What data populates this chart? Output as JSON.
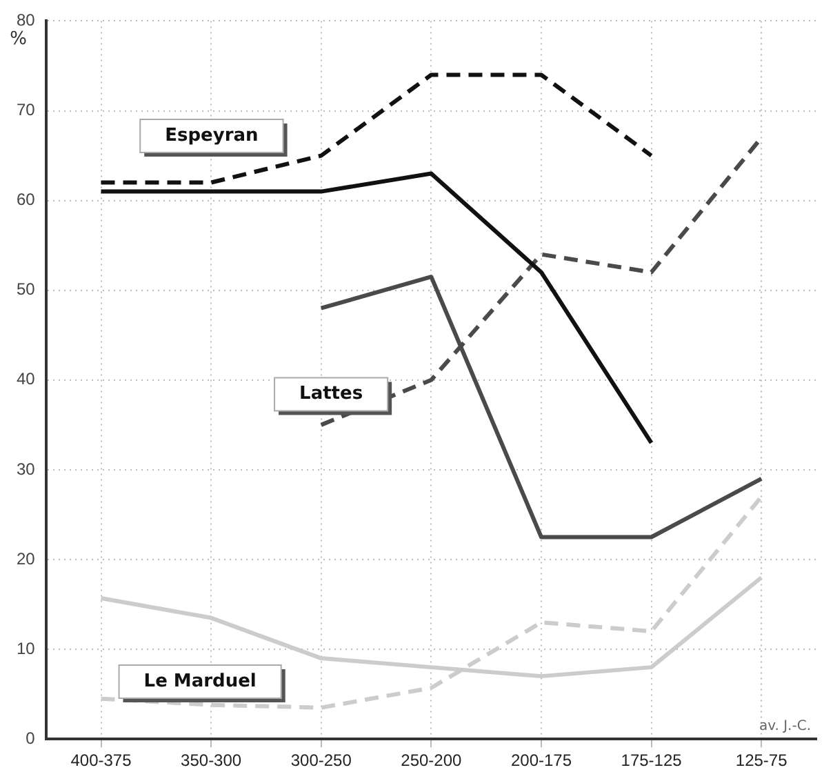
{
  "chart_data": {
    "type": "line",
    "ylabel": "%",
    "categories": [
      "400-375",
      "350-300",
      "300-250",
      "250-200",
      "200-175",
      "175-125",
      "125-75"
    ],
    "series": [
      {
        "color": "#111111",
        "line_style": "solid",
        "values": [
          61,
          61,
          61,
          63,
          52,
          33,
          null
        ]
      },
      {
        "color": "#111111",
        "line_style": "dashed",
        "values": [
          62,
          62,
          65,
          74,
          74,
          65,
          null
        ]
      },
      {
        "color": "#4a4a4a",
        "line_style": "solid",
        "values": [
          null,
          null,
          48,
          51.5,
          22.5,
          22.5,
          29
        ]
      },
      {
        "color": "#4a4a4a",
        "line_style": "dashed",
        "values": [
          null,
          null,
          35,
          40,
          54,
          52,
          67
        ]
      },
      {
        "color": "#cccccc",
        "line_style": "solid",
        "values": [
          15.7,
          13.5,
          9,
          8,
          7,
          8,
          18
        ]
      },
      {
        "color": "#cccccc",
        "line_style": "dashed",
        "values": [
          4.5,
          3.8,
          3.5,
          5.7,
          13,
          12,
          27
        ]
      }
    ],
    "ylim": [
      0,
      80
    ],
    "yticks": [
      0,
      10,
      20,
      30,
      40,
      50,
      60,
      70,
      80
    ],
    "grid": true,
    "marker": "none",
    "legend": false,
    "annotations": [
      "Espeyran",
      "Lattes",
      "Le Marduel",
      "av. J.-C."
    ]
  }
}
